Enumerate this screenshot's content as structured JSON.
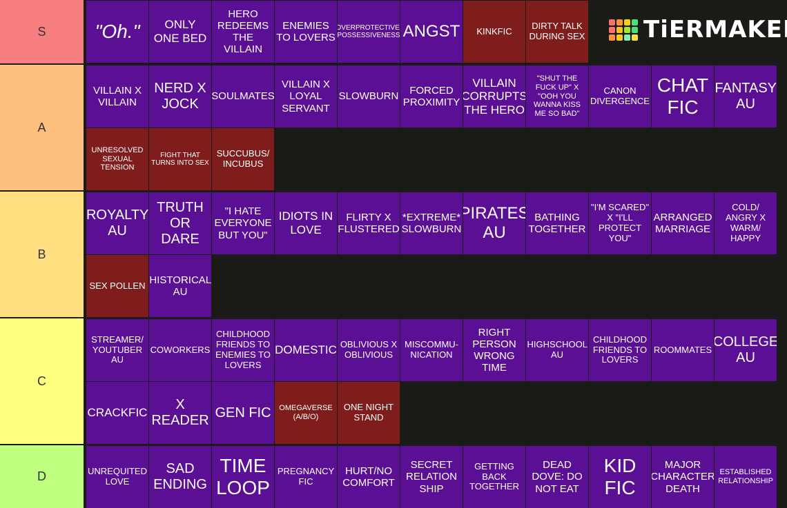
{
  "logo": {
    "text": "TiERMAKER",
    "grid_colors": [
      "#f87171",
      "#fb923c",
      "#facc15",
      "#4ade80",
      "#f87171",
      "#fbbf24",
      "#a3e635",
      "#4ade80",
      "#fb923c",
      "#facc15",
      "#86efac",
      "#fde047"
    ]
  },
  "tiers": [
    {
      "label": "S",
      "color": "#f87f7f",
      "items": [
        {
          "text": "\"Oh.\"",
          "color": "#5a0f94"
        },
        {
          "text": "ONLY ONE BED",
          "color": "#5a0f94"
        },
        {
          "text": "HERO REDEEMS THE VILLAIN",
          "color": "#5a0f94"
        },
        {
          "text": "ENEMIES TO LOVERS",
          "color": "#5a0f94"
        },
        {
          "text": "OVERPROTECTIVE/ POSSESSIVENESS",
          "color": "#5a0f94"
        },
        {
          "text": "ANGST",
          "color": "#5a0f94"
        },
        {
          "text": "KINKFIC",
          "color": "#7f1d1d"
        },
        {
          "text": "DIRTY TALK DURING SEX",
          "color": "#7f1d1d"
        }
      ]
    },
    {
      "label": "A",
      "color": "#ffbf7f",
      "items": [
        {
          "text": "VILLAIN X VILLAIN",
          "color": "#5a0f94"
        },
        {
          "text": "NERD X JOCK",
          "color": "#5a0f94"
        },
        {
          "text": "SOULMATES",
          "color": "#5a0f94"
        },
        {
          "text": "VILLAIN X LOYAL SERVANT",
          "color": "#5a0f94"
        },
        {
          "text": "SLOWBURN",
          "color": "#5a0f94"
        },
        {
          "text": "FORCED PROXIMITY",
          "color": "#5a0f94"
        },
        {
          "text": "VILLAIN CORRUPTS THE HERO",
          "color": "#5a0f94"
        },
        {
          "text": "\"SHUT THE FUCK UP\" X \"OOH YOU WANNA KISS ME SO BAD\"",
          "color": "#5a0f94"
        },
        {
          "text": "CANON DIVERGENCE",
          "color": "#5a0f94"
        },
        {
          "text": "CHAT FIC",
          "color": "#5a0f94"
        },
        {
          "text": "FANTASY AU",
          "color": "#5a0f94"
        },
        {
          "text": "UNRESOLVED SEXUAL TENSION",
          "color": "#7f1d1d"
        },
        {
          "text": "FIGHT THAT TURNS INTO SEX",
          "color": "#7f1d1d"
        },
        {
          "text": "SUCCUBUS/ INCUBUS",
          "color": "#7f1d1d"
        }
      ]
    },
    {
      "label": "B",
      "color": "#ffdf7f",
      "items": [
        {
          "text": "ROYALTY AU",
          "color": "#5a0f94"
        },
        {
          "text": "TRUTH OR DARE",
          "color": "#5a0f94"
        },
        {
          "text": "\"I HATE EVERYONE BUT YOU\"",
          "color": "#5a0f94"
        },
        {
          "text": "IDIOTS IN LOVE",
          "color": "#5a0f94"
        },
        {
          "text": "FLIRTY X FLUSTERED",
          "color": "#5a0f94"
        },
        {
          "text": "*EXTREME* SLOWBURN",
          "color": "#5a0f94"
        },
        {
          "text": "PIRATES AU",
          "color": "#5a0f94"
        },
        {
          "text": "BATHING TOGETHER",
          "color": "#5a0f94"
        },
        {
          "text": "\"I'M SCARED\" X \"I'LL PROTECT YOU\"",
          "color": "#5a0f94"
        },
        {
          "text": "ARRANGED MARRIAGE",
          "color": "#5a0f94"
        },
        {
          "text": "COLD/ ANGRY X WARM/ HAPPY",
          "color": "#5a0f94"
        },
        {
          "text": "SEX POLLEN",
          "color": "#7f1d1d"
        },
        {
          "text": "HISTORICAL AU",
          "color": "#5a0f94"
        }
      ]
    },
    {
      "label": "C",
      "color": "#ffff7f",
      "items": [
        {
          "text": "STREAMER/ YOUTUBER AU",
          "color": "#5a0f94"
        },
        {
          "text": "COWORKERS",
          "color": "#5a0f94"
        },
        {
          "text": "CHILDHOOD FRIENDS TO ENEMIES TO LOVERS",
          "color": "#5a0f94"
        },
        {
          "text": "DOMESTIC",
          "color": "#5a0f94"
        },
        {
          "text": "OBLIVIOUS X OBLIVIOUS",
          "color": "#5a0f94"
        },
        {
          "text": "MISCOMMU- NICATION",
          "color": "#5a0f94"
        },
        {
          "text": "RIGHT PERSON WRONG TIME",
          "color": "#5a0f94"
        },
        {
          "text": "HIGHSCHOOL AU",
          "color": "#5a0f94"
        },
        {
          "text": "CHILDHOOD FRIENDS TO LOVERS",
          "color": "#5a0f94"
        },
        {
          "text": "ROOMMATES",
          "color": "#5a0f94"
        },
        {
          "text": "COLLEGE AU",
          "color": "#5a0f94"
        },
        {
          "text": "CRACKFIC",
          "color": "#5a0f94"
        },
        {
          "text": "X READER",
          "color": "#5a0f94"
        },
        {
          "text": "GEN FIC",
          "color": "#5a0f94"
        },
        {
          "text": "OMEGAVERSE (A/B/O)",
          "color": "#7f1d1d"
        },
        {
          "text": "ONE NIGHT STAND",
          "color": "#7f1d1d"
        }
      ]
    },
    {
      "label": "D",
      "color": "#bfff7f",
      "items": [
        {
          "text": "UNREQUITED LOVE",
          "color": "#5a0f94"
        },
        {
          "text": "SAD ENDING",
          "color": "#5a0f94"
        },
        {
          "text": "TIME LOOP",
          "color": "#5a0f94"
        },
        {
          "text": "PREGNANCY FIC",
          "color": "#5a0f94"
        },
        {
          "text": "HURT/NO COMFORT",
          "color": "#5a0f94"
        },
        {
          "text": "SECRET RELATION SHIP",
          "color": "#5a0f94"
        },
        {
          "text": "GETTING BACK TOGETHER",
          "color": "#5a0f94"
        },
        {
          "text": "DEAD DOVE: DO NOT EAT",
          "color": "#5a0f94"
        },
        {
          "text": "KID FIC",
          "color": "#5a0f94"
        },
        {
          "text": "MAJOR CHARACTER DEATH",
          "color": "#5a0f94"
        },
        {
          "text": "ESTABLISHED RELATIONSHIP",
          "color": "#5a0f94"
        }
      ]
    }
  ]
}
